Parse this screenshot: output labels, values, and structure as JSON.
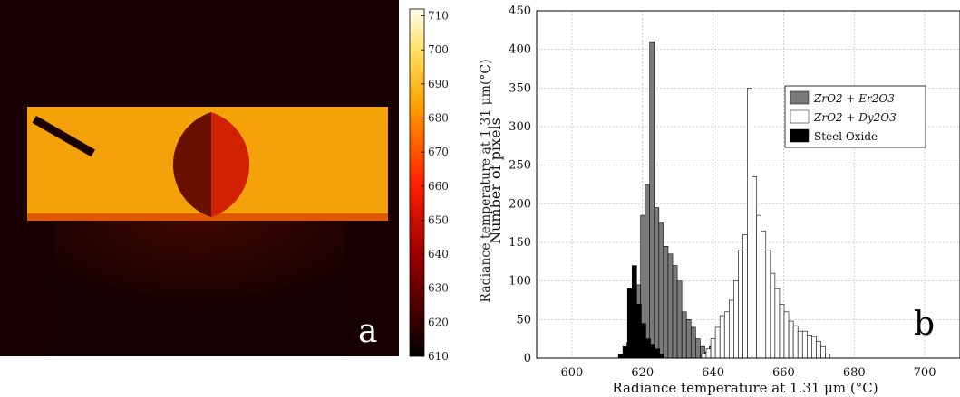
{
  "panel_a": {
    "label": "a",
    "colorbar": {
      "ticks": [
        610,
        620,
        630,
        640,
        650,
        660,
        670,
        680,
        690,
        700,
        710
      ],
      "range": [
        610,
        712
      ],
      "label": "Radiance temperature at 1.31 μm(°C)"
    }
  },
  "panel_b": {
    "label": "b"
  },
  "chart_data": {
    "type": "bar",
    "xlabel": "Radiance temperature at 1.31 μm (°C)",
    "ylabel": "Number of pixels",
    "xlim": [
      590,
      710
    ],
    "ylim": [
      0,
      450
    ],
    "xticks": [
      600,
      620,
      640,
      660,
      680,
      700
    ],
    "yticks": [
      0,
      50,
      100,
      150,
      200,
      250,
      300,
      350,
      400,
      450
    ],
    "grid": true,
    "legend_position": "top-right",
    "bin_width": 1.3,
    "series": [
      {
        "name": "ZrO2 + Er2O3",
        "color": "#7a7a7a",
        "x": [
          616.2,
          617.5,
          618.8,
          620.1,
          621.4,
          622.7,
          624.0,
          625.3,
          626.6,
          627.9,
          629.2,
          630.5,
          631.8,
          633.1,
          634.4,
          635.7,
          637.0,
          638.3,
          639.6
        ],
        "values": [
          20,
          55,
          95,
          185,
          225,
          410,
          195,
          175,
          145,
          135,
          120,
          100,
          60,
          50,
          40,
          25,
          15,
          8,
          15
        ]
      },
      {
        "name": "ZrO2 + Dy2O3",
        "color": "#ffffff",
        "x": [
          637.4,
          638.7,
          640.0,
          641.3,
          642.6,
          643.9,
          645.2,
          646.5,
          647.8,
          649.1,
          650.4,
          651.7,
          653.0,
          654.3,
          655.6,
          656.9,
          658.2,
          659.5,
          660.8,
          662.1,
          663.4,
          664.7,
          666.0,
          667.3,
          668.6,
          669.9,
          671.2,
          672.5
        ],
        "values": [
          5,
          12,
          25,
          40,
          55,
          60,
          75,
          100,
          140,
          160,
          350,
          235,
          185,
          165,
          140,
          110,
          90,
          70,
          60,
          48,
          42,
          35,
          35,
          30,
          28,
          22,
          15,
          5
        ]
      },
      {
        "name": "Steel Oxide",
        "color": "#000000",
        "x": [
          613.8,
          615.1,
          616.4,
          617.7,
          619.0,
          620.3,
          621.6,
          622.9,
          624.2,
          625.5
        ],
        "values": [
          5,
          15,
          90,
          120,
          70,
          45,
          25,
          18,
          12,
          5
        ]
      }
    ],
    "legend": [
      {
        "name": "ZrO2 + Er2O3"
      },
      {
        "name": "ZrO2 + Dy2O3"
      },
      {
        "name": "Steel Oxide"
      }
    ]
  }
}
